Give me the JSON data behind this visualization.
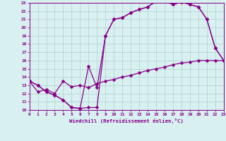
{
  "xlabel": "Windchill (Refroidissement éolien,°C)",
  "bg_color": "#d8f0f0",
  "line_color": "#880088",
  "grid_color": "#b0d0d0",
  "xmin": 0,
  "xmax": 23,
  "ymin": 10,
  "ymax": 23,
  "curve1_x": [
    0,
    1,
    2,
    3,
    4,
    5,
    6,
    7,
    8,
    9,
    10,
    11,
    12,
    13,
    14,
    15,
    16,
    17,
    18,
    19,
    20,
    21,
    22,
    23
  ],
  "curve1_y": [
    13.5,
    13.0,
    12.2,
    11.8,
    11.2,
    10.3,
    10.2,
    10.3,
    10.3,
    19.0,
    21.0,
    21.2,
    21.8,
    22.2,
    22.5,
    23.2,
    23.2,
    22.8,
    23.1,
    22.8,
    22.5,
    21.0,
    17.5,
    16.0
  ],
  "curve2_x": [
    0,
    1,
    2,
    3,
    4,
    5,
    6,
    7,
    8,
    9,
    10,
    11,
    12,
    13,
    14,
    15,
    16,
    17,
    18,
    19,
    20,
    21,
    22,
    23
  ],
  "curve2_y": [
    13.5,
    13.0,
    12.2,
    11.8,
    11.2,
    10.3,
    10.2,
    15.3,
    12.7,
    19.0,
    21.0,
    21.2,
    21.8,
    22.2,
    22.5,
    23.2,
    23.2,
    22.8,
    23.1,
    22.8,
    22.5,
    21.0,
    17.5,
    16.0
  ],
  "curve3_x": [
    0,
    1,
    2,
    3,
    4,
    5,
    6,
    7,
    8,
    9,
    10,
    11,
    12,
    13,
    14,
    15,
    16,
    17,
    18,
    19,
    20,
    21,
    22,
    23
  ],
  "curve3_y": [
    13.5,
    12.2,
    12.5,
    12.0,
    13.5,
    12.8,
    13.0,
    12.7,
    13.2,
    13.5,
    13.7,
    14.0,
    14.2,
    14.5,
    14.8,
    15.0,
    15.2,
    15.5,
    15.7,
    15.8,
    16.0,
    16.0,
    16.0,
    16.0
  ]
}
